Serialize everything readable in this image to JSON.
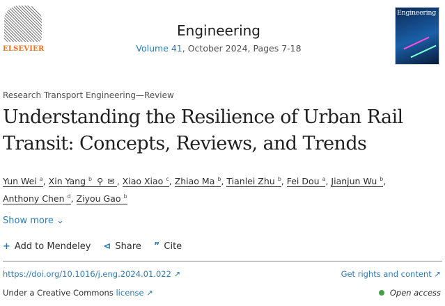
{
  "header": {
    "publisher": "ELSEVIER",
    "journal_title": "Engineering",
    "volume_link": "Volume 41",
    "issue_info": ", October 2024, Pages 7-18",
    "cover_title": "Engineering"
  },
  "article": {
    "section": "Research Transport Engineering—Review",
    "title": "Understanding the Resilience of Urban Rail Transit: Concepts, Reviews, and Trends",
    "authors": [
      {
        "name": "Yun Wei",
        "aff": "a"
      },
      {
        "name": "Xin Yang",
        "aff": "b"
      },
      {
        "name": "Xiao Xiao",
        "aff": "c"
      },
      {
        "name": "Zhiao Ma",
        "aff": "b"
      },
      {
        "name": "Tianlei Zhu",
        "aff": "b"
      },
      {
        "name": "Fei Dou",
        "aff": "a"
      },
      {
        "name": "Jianjun Wu",
        "aff": "b"
      },
      {
        "name": "Anthony Chen",
        "aff": "d"
      },
      {
        "name": "Ziyou Gao",
        "aff": "b"
      }
    ],
    "show_more": "Show more"
  },
  "actions": {
    "mendeley": "Add to Mendeley",
    "share": "Share",
    "cite": "Cite"
  },
  "links": {
    "doi": "https://doi.org/10.1016/j.eng.2024.01.022",
    "rights": "Get rights and content",
    "license_prefix": "Under a Creative Commons ",
    "license_link": "license",
    "open_access": "Open access"
  },
  "colors": {
    "link": "#2e7bb0",
    "publisher": "#e9711c",
    "open_access": "#43a047"
  }
}
